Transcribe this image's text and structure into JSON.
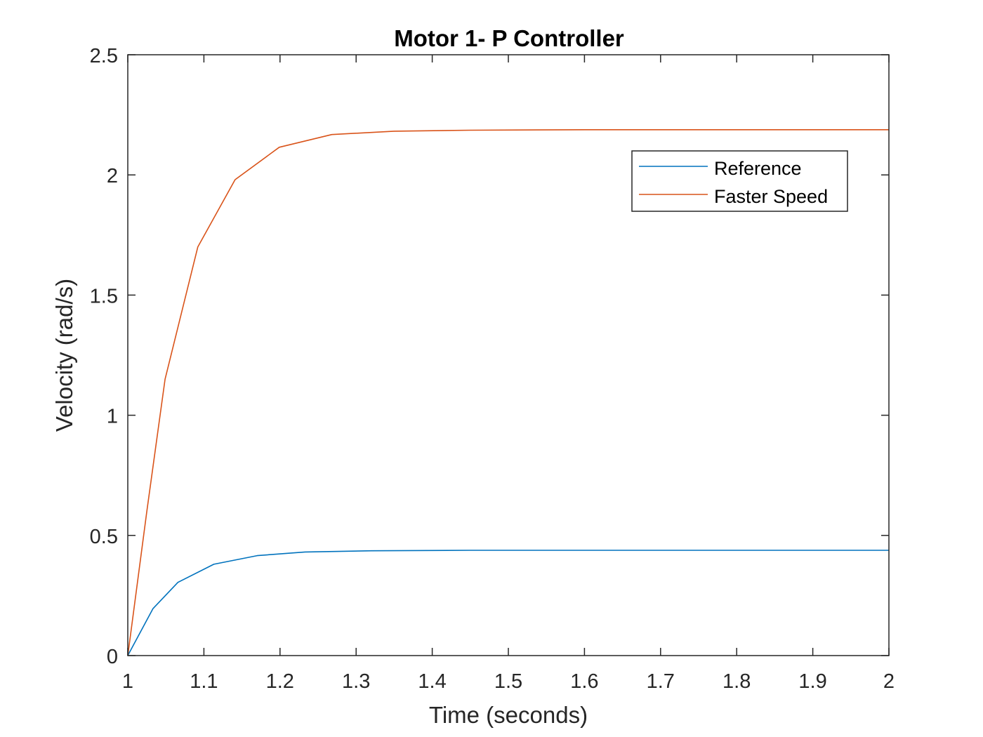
{
  "chart_data": {
    "type": "line",
    "title": "Motor 1- P Controller",
    "xlabel": "Time (seconds)",
    "ylabel": "Velocity (rad/s)",
    "xlim": [
      1,
      2
    ],
    "ylim": [
      0,
      2.5
    ],
    "xticks": [
      "1",
      "1.1",
      "1.2",
      "1.3",
      "1.4",
      "1.5",
      "1.6",
      "1.7",
      "1.8",
      "1.9",
      "2"
    ],
    "yticks": [
      "0",
      "0.5",
      "1",
      "1.5",
      "2",
      "2.5"
    ],
    "grid": false,
    "legend_position": "top-right",
    "series": [
      {
        "name": "Reference",
        "color": "#0072BD",
        "x": [
          1.0,
          1.033,
          1.066,
          1.113,
          1.17,
          1.233,
          1.32,
          1.45,
          1.6,
          2.0
        ],
        "y": [
          0.0,
          0.195,
          0.305,
          0.38,
          0.416,
          0.431,
          0.436,
          0.438,
          0.438,
          0.438
        ]
      },
      {
        "name": "Faster Speed",
        "color": "#D95319",
        "x": [
          1.0,
          1.025,
          1.049,
          1.092,
          1.141,
          1.199,
          1.268,
          1.35,
          1.45,
          1.6,
          2.0
        ],
        "y": [
          0.0,
          0.6,
          1.15,
          1.7,
          1.98,
          2.115,
          2.168,
          2.182,
          2.186,
          2.188,
          2.188
        ]
      }
    ]
  }
}
